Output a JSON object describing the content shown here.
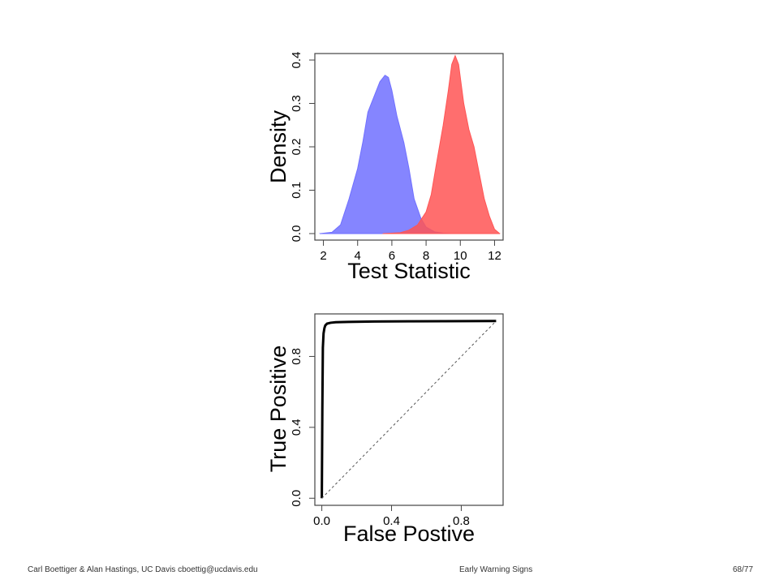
{
  "chart_data": [
    {
      "type": "area",
      "xlabel": "Test Statistic",
      "ylabel": "Density",
      "xlim": [
        1.5,
        12.5
      ],
      "ylim": [
        -0.015,
        0.415
      ],
      "xticks": [
        "2",
        "4",
        "6",
        "8",
        "10",
        "12"
      ],
      "yticks": [
        "0.0",
        "0.1",
        "0.2",
        "0.3",
        "0.4"
      ],
      "grid": false,
      "series": [
        {
          "color": "#7070ff",
          "x": [
            1.8,
            2.5,
            3.0,
            3.5,
            4.0,
            4.3,
            4.6,
            5.0,
            5.3,
            5.6,
            5.8,
            6.0,
            6.3,
            6.7,
            7.0,
            7.3,
            7.7,
            8.0,
            8.5,
            9.0,
            9.5
          ],
          "y": [
            0.0,
            0.003,
            0.02,
            0.08,
            0.15,
            0.21,
            0.28,
            0.32,
            0.35,
            0.365,
            0.36,
            0.33,
            0.27,
            0.21,
            0.15,
            0.08,
            0.035,
            0.015,
            0.004,
            0.001,
            0.0
          ]
        },
        {
          "color": "#ff5555",
          "x": [
            5.5,
            6.5,
            7.0,
            7.5,
            8.0,
            8.3,
            8.6,
            9.0,
            9.3,
            9.5,
            9.7,
            9.9,
            10.2,
            10.5,
            10.8,
            11.1,
            11.4,
            11.7,
            12.0,
            12.3
          ],
          "y": [
            0.0,
            0.002,
            0.008,
            0.02,
            0.05,
            0.09,
            0.16,
            0.25,
            0.33,
            0.39,
            0.41,
            0.39,
            0.3,
            0.24,
            0.2,
            0.14,
            0.08,
            0.04,
            0.01,
            0.0
          ]
        }
      ]
    },
    {
      "type": "line",
      "xlabel": "False Postive",
      "ylabel": "True Positive",
      "xlim": [
        -0.04,
        1.04
      ],
      "ylim": [
        -0.04,
        1.04
      ],
      "xticks": [
        "0.0",
        "0.4",
        "0.8"
      ],
      "yticks": [
        "0.0",
        "0.4",
        "0.8"
      ],
      "grid": false,
      "series": [
        {
          "style": "solid",
          "x": [
            0.0,
            0.003,
            0.006,
            0.01,
            0.015,
            0.02,
            0.03,
            0.05,
            0.08,
            0.15,
            0.3,
            0.5,
            0.7,
            1.0
          ],
          "y": [
            0.0,
            0.5,
            0.85,
            0.93,
            0.96,
            0.975,
            0.985,
            0.99,
            0.993,
            0.995,
            0.997,
            0.998,
            0.999,
            1.0
          ]
        },
        {
          "style": "dashed",
          "x": [
            0.0,
            1.0
          ],
          "y": [
            0.0,
            1.0
          ]
        }
      ]
    }
  ],
  "footer": {
    "left": "Carl Boettiger & Alan Hastings, UC Davis cboettig@ucdavis.edu",
    "center": "Early Warning Signs",
    "right": "68/77"
  }
}
